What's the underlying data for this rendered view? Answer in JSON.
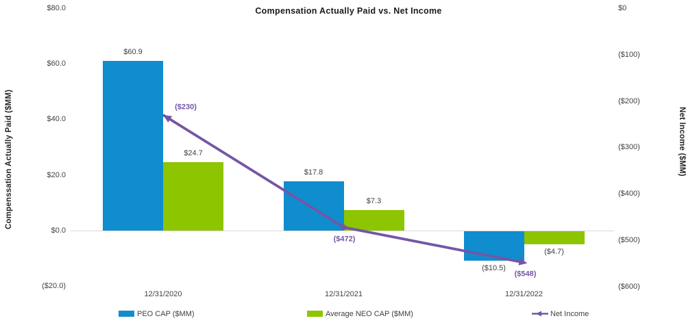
{
  "title": "Compensation Actually Paid vs. Net Income",
  "left_axis": {
    "title": "Compenssation Actually Paid ($MM)",
    "ticks": [
      "$80.0",
      "$60.0",
      "$40.0",
      "$20.0",
      "$0.0",
      "($20.0)"
    ],
    "tick_values": [
      80,
      60,
      40,
      20,
      0,
      -20
    ]
  },
  "right_axis": {
    "title": "Net Income ($MM)",
    "ticks": [
      "$0",
      "($100)",
      "($200)",
      "($300)",
      "($400)",
      "($500)",
      "($600)"
    ],
    "tick_values": [
      0,
      -100,
      -200,
      -300,
      -400,
      -500,
      -600
    ]
  },
  "legend": [
    {
      "label": "PEO CAP ($MM)",
      "type": "bar",
      "color": "#108DCE"
    },
    {
      "label": "Average NEO CAP ($MM)",
      "type": "bar",
      "color": "#8DC501"
    },
    {
      "label": "Net Income",
      "type": "line-arrow",
      "color": "#7456A4"
    }
  ],
  "colors": {
    "peo_bar": "#108DCE",
    "neo_bar": "#8DC501",
    "net_income_line": "#7456A4",
    "axis_line": "#d9d9d9",
    "tick_text": "#404040"
  },
  "chart_data": {
    "type": "bar",
    "subtype": "grouped bars + line on secondary axis",
    "title": "Compensation Actually Paid vs. Net Income",
    "categories": [
      "12/31/2020",
      "12/31/2021",
      "12/31/2022"
    ],
    "series": [
      {
        "name": "PEO CAP ($MM)",
        "type": "bar",
        "axis": "left",
        "color": "#108DCE",
        "values": [
          60.9,
          17.8,
          -10.5
        ],
        "labels": [
          "$60.9",
          "$17.8",
          "($10.5)"
        ]
      },
      {
        "name": "Average NEO CAP ($MM)",
        "type": "bar",
        "axis": "left",
        "color": "#8DC501",
        "values": [
          24.7,
          7.3,
          -4.7
        ],
        "labels": [
          "$24.7",
          "$7.3",
          "($4.7)"
        ]
      },
      {
        "name": "Net Income",
        "type": "line",
        "axis": "right",
        "color": "#7456A4",
        "values": [
          -230,
          -472,
          -548
        ],
        "labels": [
          "($230)",
          "($472)",
          "($548)"
        ]
      }
    ],
    "left_ylabel": "Compenssation Actually Paid ($MM)",
    "right_ylabel": "Net Income ($MM)",
    "left_ylim": [
      -20,
      80
    ],
    "right_ylim": [
      -600,
      0
    ],
    "grid": false,
    "legend_position": "bottom"
  }
}
